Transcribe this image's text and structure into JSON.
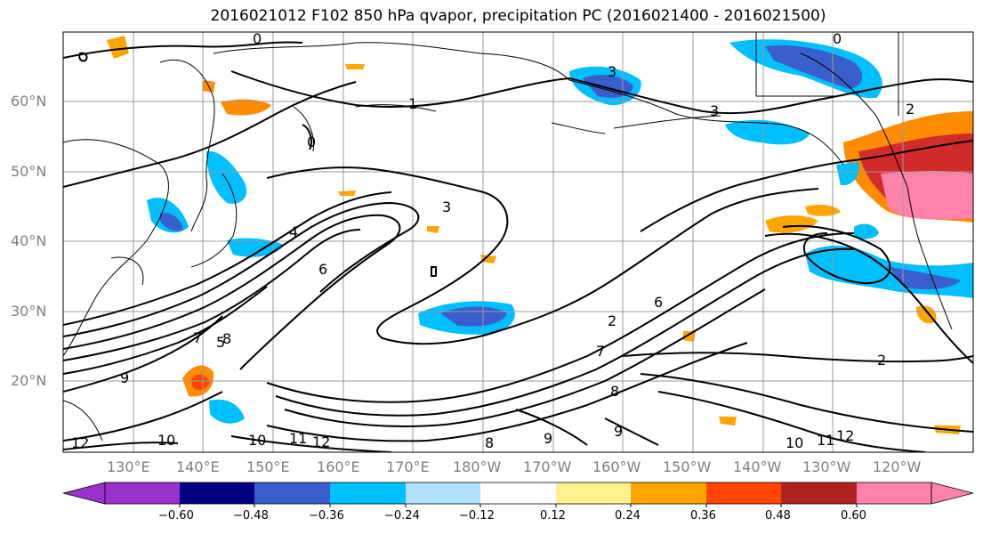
{
  "title": "2016021012 F102 850 hPa qvapor, precipitation PC (2016021400 - 2016021500)",
  "map": {
    "region": "North Pacific",
    "projection": "cylindrical",
    "grid": true,
    "lat_labels": [
      "60°N",
      "50°N",
      "40°N",
      "30°N",
      "20°N"
    ],
    "lon_labels": [
      "130°E",
      "140°E",
      "150°E",
      "160°E",
      "170°E",
      "180°W",
      "170°W",
      "160°W",
      "150°W",
      "140°W",
      "130°W",
      "120°W"
    ],
    "contour_labels": [
      "0",
      "0",
      "0",
      "1",
      "2",
      "2",
      "2",
      "3",
      "3",
      "3",
      "4",
      "5",
      "6",
      "6",
      "7",
      "7",
      "8",
      "8",
      "8",
      "9",
      "9",
      "9",
      "10",
      "10",
      "10",
      "11",
      "11",
      "12",
      "12",
      "12"
    ],
    "contour_field": "850 hPa qvapor",
    "shaded_field": "precipitation PC"
  },
  "colorbar": {
    "ticks": [
      "−0.60",
      "−0.48",
      "−0.36",
      "−0.24",
      "−0.12",
      "0.12",
      "0.24",
      "0.36",
      "0.48",
      "0.60"
    ],
    "colors": [
      "#9932cc",
      "#000080",
      "#3a5fcd",
      "#00bfff",
      "#b0e2ff",
      "#ffffff",
      "#fff08f",
      "#ffa500",
      "#ff4500",
      "#b22222",
      "#ff82ab"
    ],
    "extend": "both"
  }
}
